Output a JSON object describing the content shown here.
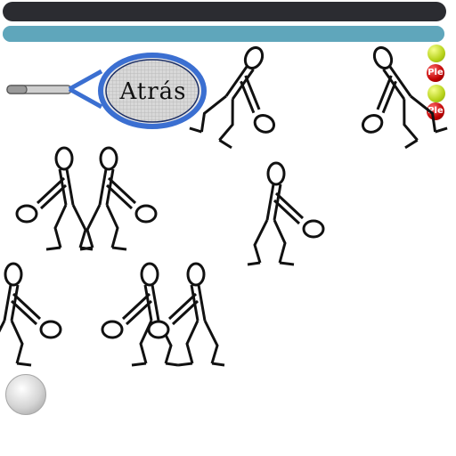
{
  "header": {
    "title": ""
  },
  "progress": {
    "fraction": 1.0,
    "color": "#5fa6bb"
  },
  "back_button": {
    "label": "Atrás"
  },
  "side_markers": [
    {
      "kind": "tennis-ball"
    },
    {
      "kind": "red-ball",
      "label": "Ple"
    },
    {
      "kind": "tennis-ball"
    },
    {
      "kind": "red-ball",
      "label": "Ple"
    }
  ],
  "figures": {
    "count": 8,
    "description_icons": "tennis-player-stick-figure"
  },
  "colors": {
    "topbar": "#2b2c31",
    "racket_frame": "#3b6fd1",
    "accent_red": "#c00000",
    "ball_yellow": "#b6d21a"
  }
}
